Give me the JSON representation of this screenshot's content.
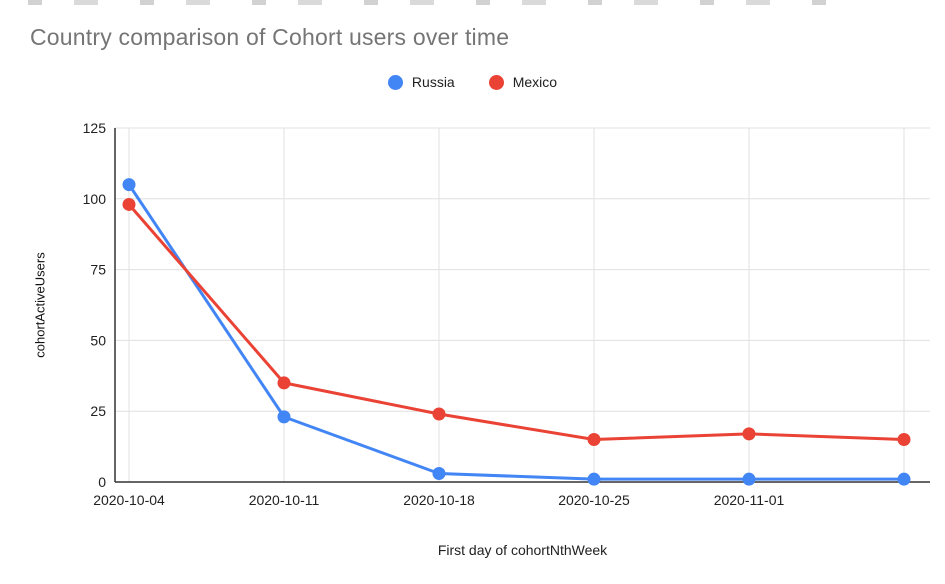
{
  "chart_data": {
    "type": "line",
    "title": "Country comparison of Cohort users over time",
    "xlabel": "First day of cohortNthWeek",
    "ylabel": "cohortActiveUsers",
    "categories": [
      "2020-10-04",
      "2020-10-11",
      "2020-10-18",
      "2020-10-25",
      "2020-11-01",
      ""
    ],
    "series": [
      {
        "name": "Russia",
        "color": "#4285f4",
        "values": [
          105,
          23,
          3,
          1,
          1,
          1
        ]
      },
      {
        "name": "Mexico",
        "color": "#ea4335",
        "values": [
          98,
          35,
          24,
          15,
          17,
          15
        ]
      }
    ],
    "ylim": [
      0,
      125
    ],
    "yticks": [
      0,
      25,
      50,
      75,
      100,
      125
    ],
    "grid": "horizontal-and-vertical",
    "legend_position": "top-center",
    "colors": {
      "title_text": "#757575",
      "tick_text": "#212121",
      "gridline": "#e0e0e0",
      "axis_line": "#333333",
      "background": "#ffffff"
    }
  }
}
